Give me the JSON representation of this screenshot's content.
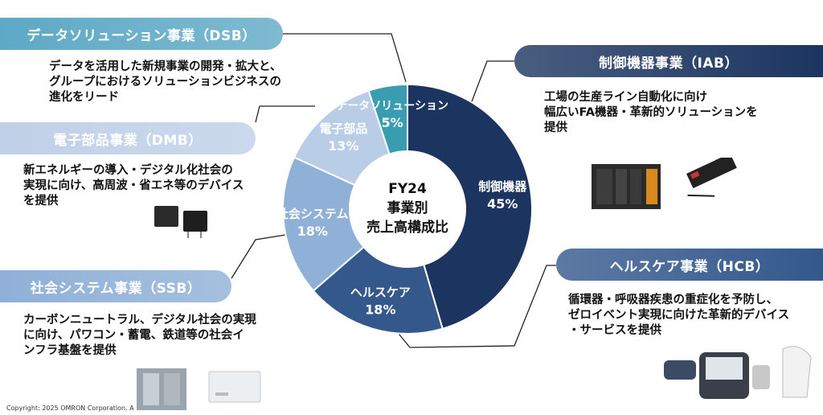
{
  "chart_data": {
    "type": "pie",
    "donut": true,
    "center_label": [
      "FY24",
      "事業別",
      "売上高構成比"
    ],
    "slices": [
      {
        "label": "制御機器",
        "value": 45,
        "value_label": "45%",
        "color": "#1c3560"
      },
      {
        "label": "ヘルスケア",
        "value": 18,
        "value_label": "18%",
        "color": "#34588c"
      },
      {
        "label": "社会システム",
        "value": 18,
        "value_label": "18%",
        "color": "#8fb0d7"
      },
      {
        "label": "電子部品",
        "value": 13,
        "value_label": "13%",
        "color": "#b9cde6"
      },
      {
        "label": "データソリューション",
        "value": 5,
        "value_label": "5%",
        "color": "#3a9cb1"
      }
    ]
  },
  "segments": {
    "dsb": {
      "title": "データソリューション事業（DSB）",
      "desc": "データを活用した新規事業の開発・拡大と、\nグループにおけるソリューションビジネスの\n進化をリード",
      "color": "#5ea9c6"
    },
    "iab": {
      "title": "制御機器事業（IAB）",
      "desc": "工場の生産ライン自動化に向け\n幅広いFA機器・革新的ソリューションを\n提供",
      "color": "#1c3560"
    },
    "dmb": {
      "title": "電子部品事業（DMB）",
      "desc": "新エネルギーの導入・デジタル化社会の\n実現に向け、高周波・省エネ等のデバイス\nを提供",
      "color": "#bfd0e8"
    },
    "hcb": {
      "title": "ヘルスケア事業（HCB）",
      "desc": "循環器・呼吸器疾患の重症化を予防し、\nゼロイベント実現に向けた革新的デバイス\n・サービスを提供",
      "color": "#34588c"
    },
    "ssb": {
      "title": "社会システム事業（SSB）",
      "desc": "カーボンニュートラル、デジタル社会の実現\nに向け、パワコン・蓄電、鉄道等の社会イ\nンフラ基盤を提供",
      "color": "#8fb0d7"
    }
  },
  "footer": {
    "copyright": "Copyright: 2025 OMRON Corporation. A"
  }
}
